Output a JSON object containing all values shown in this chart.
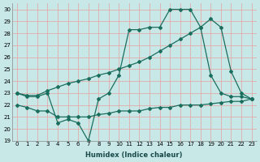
{
  "xlabel": "Humidex (Indice chaleur)",
  "background_color": "#c8e8e8",
  "grid_color": "#e8a0a0",
  "line_color": "#1a6e5e",
  "xlim": [
    -0.5,
    23.5
  ],
  "ylim": [
    19,
    30.5
  ],
  "yticks": [
    19,
    20,
    21,
    22,
    23,
    24,
    25,
    26,
    27,
    28,
    29,
    30
  ],
  "xticks": [
    0,
    1,
    2,
    3,
    4,
    5,
    6,
    7,
    8,
    9,
    10,
    11,
    12,
    13,
    14,
    15,
    16,
    17,
    18,
    19,
    20,
    21,
    22,
    23
  ],
  "line1_x": [
    0,
    1,
    2,
    3,
    4,
    5,
    6,
    7,
    8,
    9,
    10,
    11,
    12,
    13,
    14,
    15,
    16,
    17,
    18,
    19,
    20,
    21,
    22,
    23
  ],
  "line1_y": [
    23.0,
    22.7,
    22.7,
    23.0,
    20.5,
    20.8,
    20.5,
    19.0,
    22.5,
    23.0,
    24.5,
    28.3,
    28.3,
    28.5,
    28.5,
    30.0,
    30.0,
    30.0,
    28.5,
    24.5,
    23.0,
    22.7,
    22.7,
    22.5
  ],
  "line2_x": [
    0,
    1,
    2,
    3,
    4,
    5,
    6,
    7,
    8,
    9,
    10,
    11,
    12,
    13,
    14,
    15,
    16,
    17,
    18,
    19,
    20,
    21,
    22,
    23
  ],
  "line2_y": [
    23.0,
    22.8,
    22.8,
    23.2,
    23.5,
    23.8,
    24.0,
    24.2,
    24.5,
    24.7,
    25.0,
    25.3,
    25.6,
    26.0,
    26.5,
    27.0,
    27.5,
    28.0,
    28.5,
    29.2,
    28.5,
    24.8,
    23.0,
    22.5
  ],
  "line3_x": [
    0,
    1,
    2,
    3,
    4,
    5,
    6,
    7,
    8,
    9,
    10,
    11,
    12,
    13,
    14,
    15,
    16,
    17,
    18,
    19,
    20,
    21,
    22,
    23
  ],
  "line3_y": [
    22.0,
    21.8,
    21.5,
    21.5,
    21.0,
    21.0,
    21.0,
    21.0,
    21.2,
    21.3,
    21.5,
    21.5,
    21.5,
    21.7,
    21.8,
    21.8,
    22.0,
    22.0,
    22.0,
    22.1,
    22.2,
    22.3,
    22.3,
    22.5
  ],
  "marker": "D",
  "markersize": 2.0,
  "linewidth": 0.9
}
